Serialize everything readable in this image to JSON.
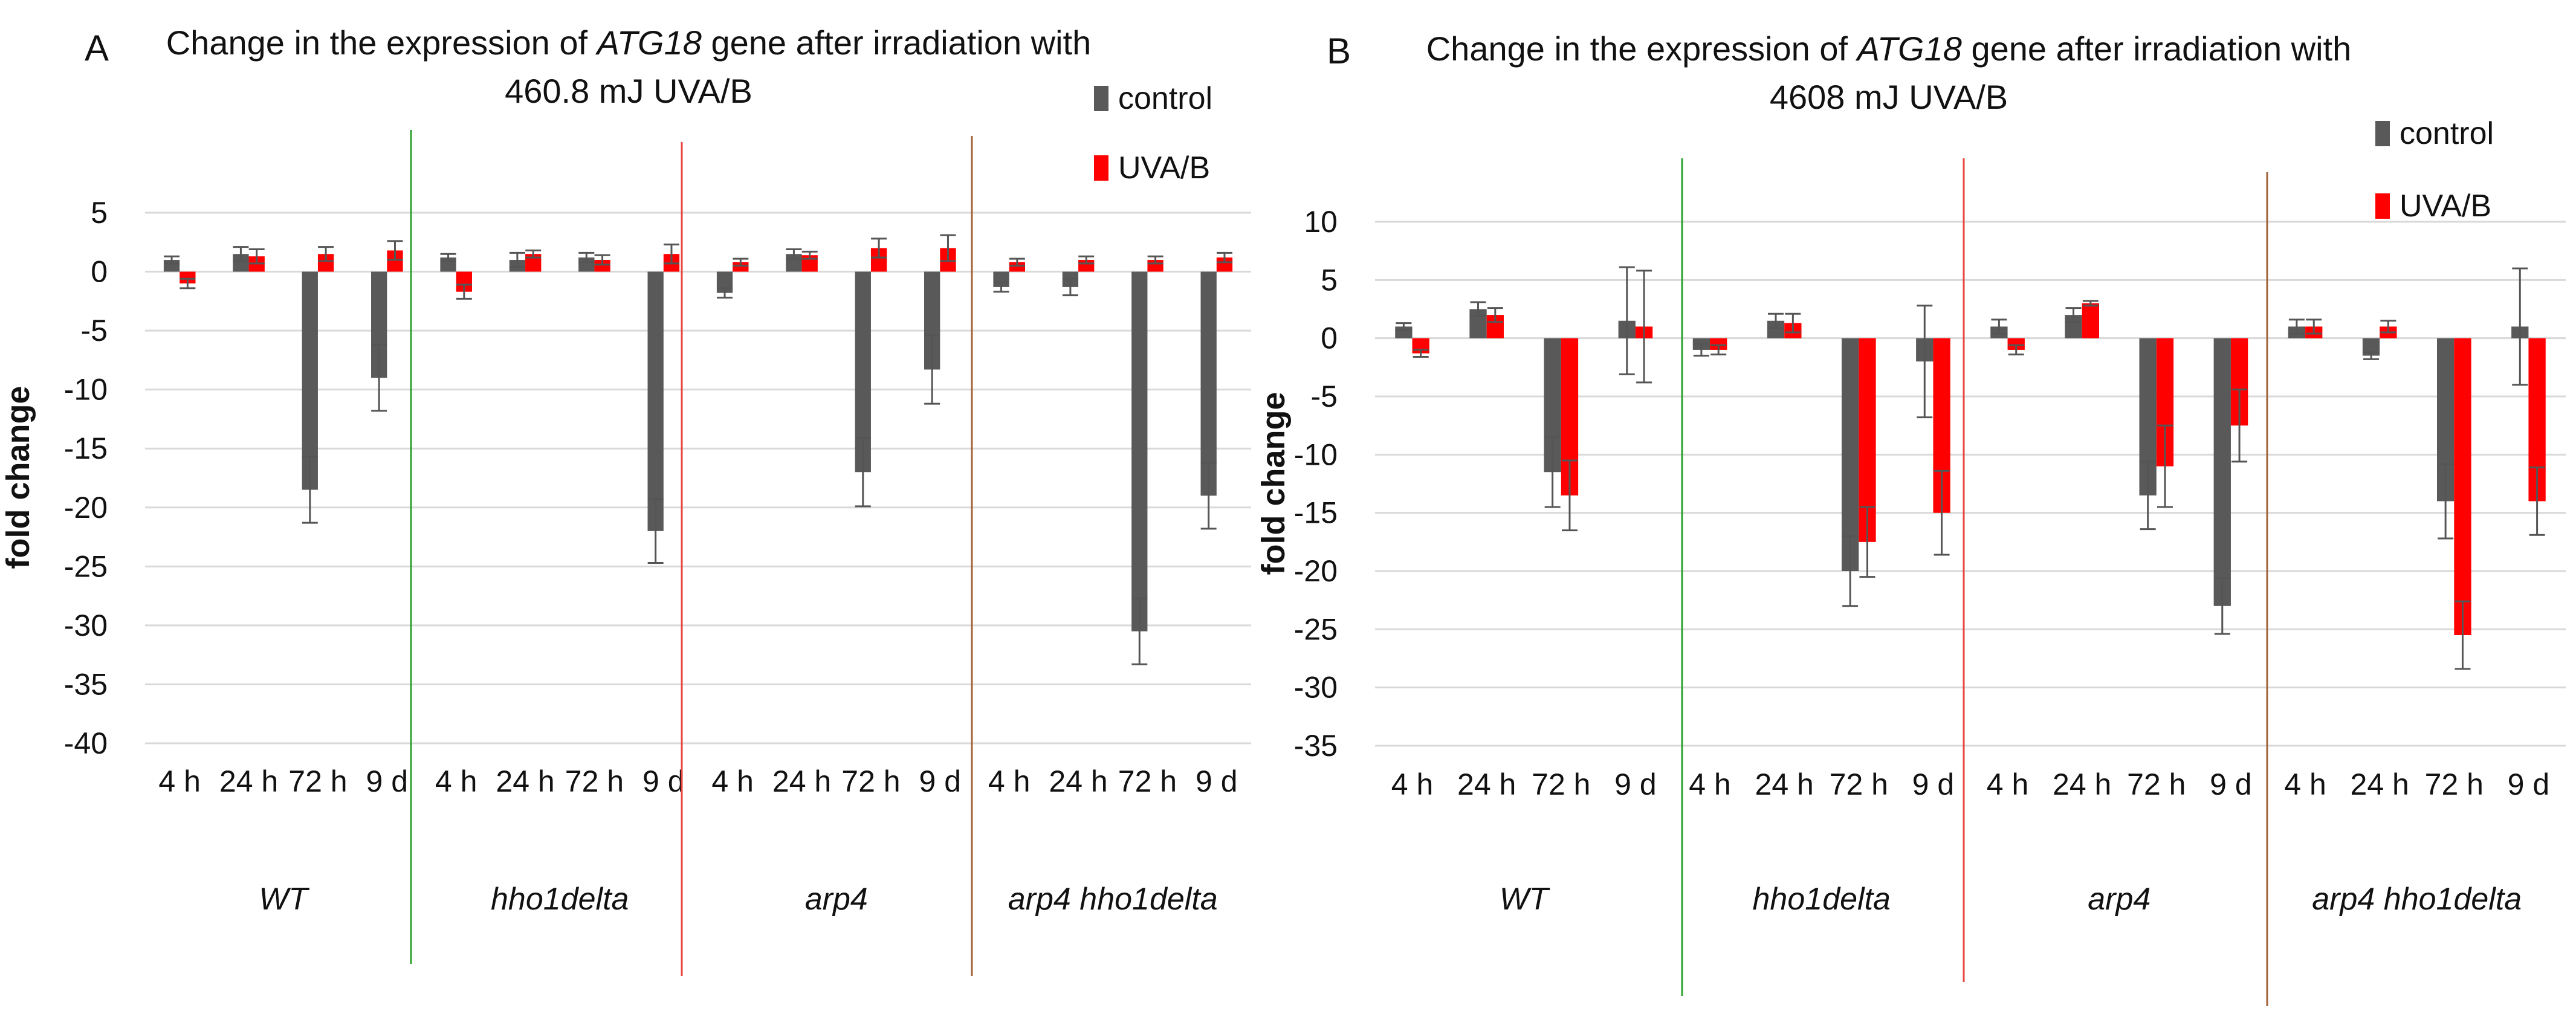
{
  "chart_data": [
    {
      "type": "bar",
      "panel_label": "A",
      "title_prefix": "Change in the expression of ",
      "title_gene": "ATG18",
      "title_suffix": " gene after irradiation with",
      "title_line2": "460.8 mJ UVA/B",
      "ylabel": "fold change",
      "ylim": [
        -40,
        5
      ],
      "ytick_step": 5,
      "yticks": [
        "5",
        "0",
        "-5",
        "-10",
        "-15",
        "-20",
        "-25",
        "-30",
        "-35",
        "-40"
      ],
      "categories": [
        "4 h",
        "24 h",
        "72 h",
        "9 d"
      ],
      "groups": [
        "WT",
        "hho1delta",
        "arp4",
        "arp4 hho1delta"
      ],
      "group_separator_colors": [
        "#2ca02c",
        "#e8453c",
        "#a0623a"
      ],
      "legend_position": "top-right",
      "series": [
        {
          "name": "control",
          "color": "#595959",
          "values": [
            [
              1.0,
              1.5,
              -18.5,
              -9.0
            ],
            [
              1.2,
              1.0,
              1.2,
              -22.0
            ],
            [
              -1.8,
              1.5,
              -17.0,
              -8.3
            ],
            [
              -1.3,
              -1.3,
              -30.5,
              -19.0
            ]
          ],
          "errors": [
            [
              0.3,
              0.6,
              2.8,
              2.8
            ],
            [
              0.3,
              0.6,
              0.4,
              2.7
            ],
            [
              0.4,
              0.4,
              2.9,
              2.9
            ],
            [
              0.4,
              0.7,
              2.8,
              2.8
            ]
          ]
        },
        {
          "name": "UVA/B",
          "color": "#ff0000",
          "values": [
            [
              -1.0,
              1.3,
              1.5,
              1.8
            ],
            [
              -1.7,
              1.5,
              1.0,
              1.5
            ],
            [
              0.8,
              1.4,
              2.0,
              2.0
            ],
            [
              0.8,
              1.0,
              1.0,
              1.2
            ]
          ],
          "errors": [
            [
              0.4,
              0.6,
              0.6,
              0.8
            ],
            [
              0.6,
              0.3,
              0.4,
              0.8
            ],
            [
              0.3,
              0.3,
              0.8,
              1.1
            ],
            [
              0.3,
              0.3,
              0.3,
              0.4
            ]
          ]
        }
      ]
    },
    {
      "type": "bar",
      "panel_label": "B",
      "title_prefix": "Change in the expression of ",
      "title_gene": "ATG18",
      "title_suffix": " gene after irradiation with",
      "title_line2": "4608 mJ UVA/B",
      "ylabel": "fold change",
      "ylim": [
        -35,
        10
      ],
      "ytick_step": 5,
      "yticks": [
        "10",
        "5",
        "0",
        "-5",
        "-10",
        "-15",
        "-20",
        "-25",
        "-30",
        "-35"
      ],
      "categories": [
        "4 h",
        "24 h",
        "72 h",
        "9 d"
      ],
      "groups": [
        "WT",
        "hho1delta",
        "arp4",
        "arp4 hho1delta"
      ],
      "group_separator_colors": [
        "#2ca02c",
        "#e8453c",
        "#a0623a"
      ],
      "legend_position": "top-right",
      "series": [
        {
          "name": "control",
          "color": "#595959",
          "values": [
            [
              1.0,
              2.5,
              -11.5,
              1.5
            ],
            [
              -1.0,
              1.5,
              -20.0,
              -2.0
            ],
            [
              1.0,
              2.0,
              -13.5,
              -23.0
            ],
            [
              1.0,
              -1.5,
              -14.0,
              1.0
            ]
          ],
          "errors": [
            [
              0.3,
              0.6,
              3.0,
              4.6
            ],
            [
              0.5,
              0.6,
              3.0,
              4.8
            ],
            [
              0.6,
              0.6,
              2.9,
              2.4
            ],
            [
              0.6,
              0.3,
              3.2,
              5.0
            ]
          ]
        },
        {
          "name": "UVA/B",
          "color": "#ff0000",
          "values": [
            [
              -1.3,
              2.0,
              -13.5,
              1.0
            ],
            [
              -1.0,
              1.3,
              -17.5,
              -15.0
            ],
            [
              -1.0,
              3.0,
              -11.0,
              -7.5
            ],
            [
              1.0,
              1.0,
              -25.5,
              -14.0
            ]
          ],
          "errors": [
            [
              0.3,
              0.6,
              3.0,
              4.8
            ],
            [
              0.4,
              0.8,
              3.0,
              3.6
            ],
            [
              0.4,
              0.2,
              3.5,
              3.1
            ],
            [
              0.6,
              0.5,
              2.9,
              2.9
            ]
          ]
        }
      ]
    }
  ]
}
